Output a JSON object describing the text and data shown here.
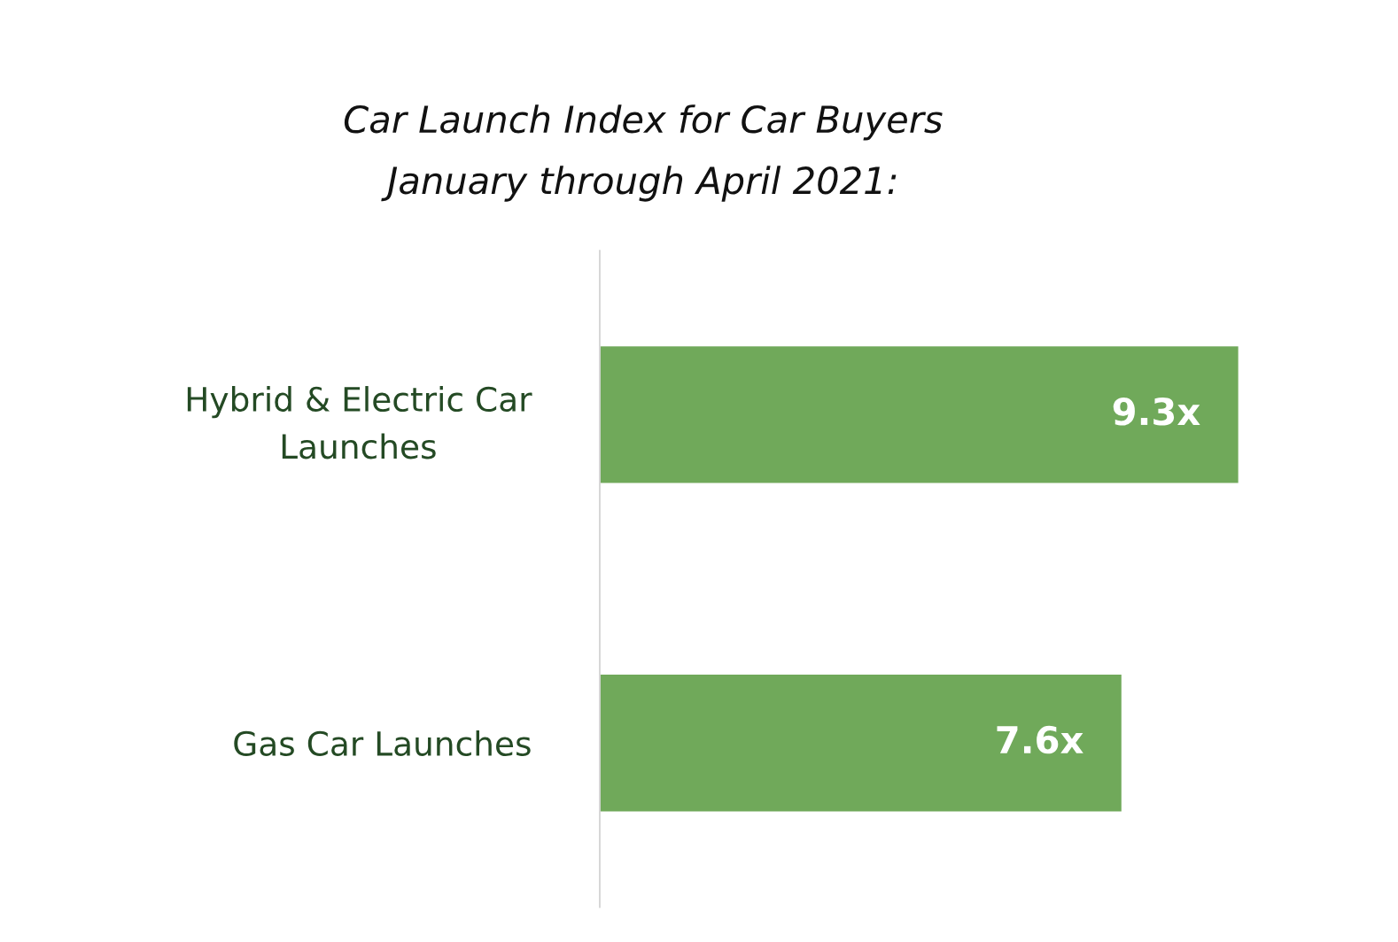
{
  "chart_data": {
    "type": "bar",
    "orientation": "horizontal",
    "title": "Car Launch Index for Car Buyers",
    "subtitle": "January through April 2021:",
    "categories": [
      "Hybrid & Electric Car\nLaunches",
      "Gas Car Launches"
    ],
    "values": [
      9.3,
      7.6
    ],
    "value_labels": [
      "9.3x",
      "7.6x"
    ],
    "color": "#70a95a",
    "tick_labels": "y",
    "grid": false,
    "legend": false
  }
}
